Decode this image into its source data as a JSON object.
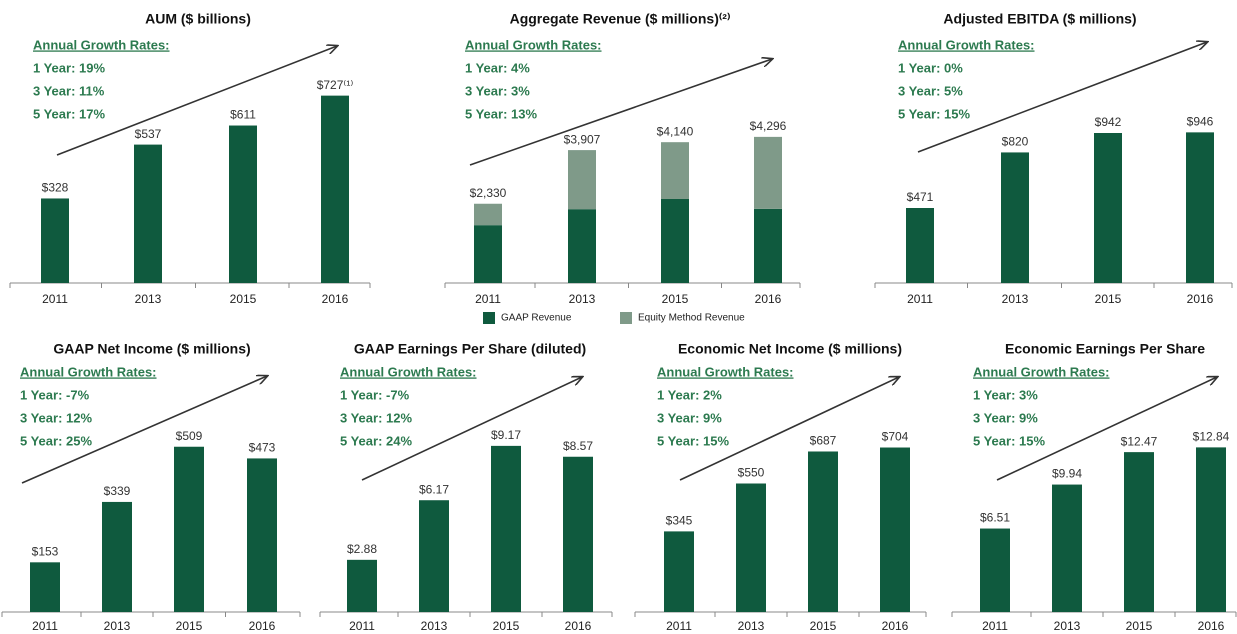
{
  "chart_data": [
    {
      "type": "bar",
      "title": "AUM ($ billions)",
      "growth_header": "Annual Growth Rates:",
      "growth_rates": [
        "1 Year: 19%",
        "3 Year: 11%",
        "5 Year: 17%"
      ],
      "categories": [
        "2011",
        "2013",
        "2015",
        "2016"
      ],
      "values": [
        328,
        537,
        611,
        727
      ],
      "value_labels": [
        "$328",
        "$537",
        "$611",
        "$727⁽¹⁾"
      ],
      "color": "#0f5a3e",
      "ylim": [
        0,
        970
      ]
    },
    {
      "type": "stacked_bar",
      "title": "Aggregate Revenue ($ millions)⁽²⁾",
      "growth_header": "Annual Growth Rates:",
      "growth_rates": [
        "1 Year: 4%",
        "3 Year: 3%",
        "5 Year: 13%"
      ],
      "categories": [
        "2011",
        "2013",
        "2015",
        "2016"
      ],
      "series": [
        {
          "name": "GAAP Revenue",
          "color": "#0f5a3e",
          "values": [
            1700,
            2170,
            2470,
            2180
          ]
        },
        {
          "name": "Equity Method Revenue",
          "color": "#7f9a89",
          "values": [
            630,
            1737,
            1670,
            2116
          ]
        }
      ],
      "total_labels": [
        "$2,330",
        "$3,907",
        "$4,140",
        "$4,296"
      ],
      "ylim": [
        0,
        7350
      ],
      "legend": "bottom"
    },
    {
      "type": "bar",
      "title": "Adjusted EBITDA ($ millions)",
      "growth_header": "Annual Growth Rates:",
      "growth_rates": [
        "1 Year: 0%",
        "3 Year: 5%",
        "5 Year: 15%"
      ],
      "categories": [
        "2011",
        "2013",
        "2015",
        "2016"
      ],
      "values": [
        471,
        820,
        942,
        946
      ],
      "value_labels": [
        "$471",
        "$820",
        "$942",
        "$946"
      ],
      "color": "#0f5a3e",
      "ylim": [
        0,
        1570
      ]
    },
    {
      "type": "bar",
      "title": "GAAP Net Income ($ millions)",
      "growth_header": "Annual Growth Rates:",
      "growth_rates": [
        "1 Year: -7%",
        "3 Year: 12%",
        "5 Year: 25%"
      ],
      "categories": [
        "2011",
        "2013",
        "2015",
        "2016"
      ],
      "values": [
        153,
        339,
        509,
        473
      ],
      "value_labels": [
        "$153",
        "$339",
        "$509",
        "$473"
      ],
      "color": "#0f5a3e",
      "ylim": [
        0,
        770
      ]
    },
    {
      "type": "bar",
      "title": "GAAP Earnings Per Share (diluted)",
      "growth_header": "Annual Growth Rates:",
      "growth_rates": [
        "1 Year: -7%",
        "3 Year: 12%",
        "5 Year: 24%"
      ],
      "categories": [
        "2011",
        "2013",
        "2015",
        "2016"
      ],
      "values": [
        2.88,
        6.17,
        9.17,
        8.57
      ],
      "value_labels": [
        "$2.88",
        "$6.17",
        "$9.17",
        "$8.57"
      ],
      "color": "#0f5a3e",
      "ylim": [
        0,
        13.8
      ]
    },
    {
      "type": "bar",
      "title": "Economic Net Income ($ millions)",
      "growth_header": "Annual Growth Rates:",
      "growth_rates": [
        "1 Year: 2%",
        "3 Year: 9%",
        "5 Year: 15%"
      ],
      "categories": [
        "2011",
        "2013",
        "2015",
        "2016"
      ],
      "values": [
        345,
        550,
        687,
        704
      ],
      "value_labels": [
        "$345",
        "$550",
        "$687",
        "$704"
      ],
      "color": "#0f5a3e",
      "ylim": [
        0,
        1070
      ]
    },
    {
      "type": "bar",
      "title": "Economic Earnings Per Share",
      "growth_header": "Annual Growth Rates:",
      "growth_rates": [
        "1 Year: 3%",
        "3 Year: 9%",
        "5 Year: 15%"
      ],
      "categories": [
        "2011",
        "2013",
        "2015",
        "2016"
      ],
      "values": [
        6.51,
        9.94,
        12.47,
        12.84
      ],
      "value_labels": [
        "$6.51",
        "$9.94",
        "$12.47",
        "$12.84"
      ],
      "color": "#0f5a3e",
      "ylim": [
        0,
        19.5
      ]
    }
  ]
}
